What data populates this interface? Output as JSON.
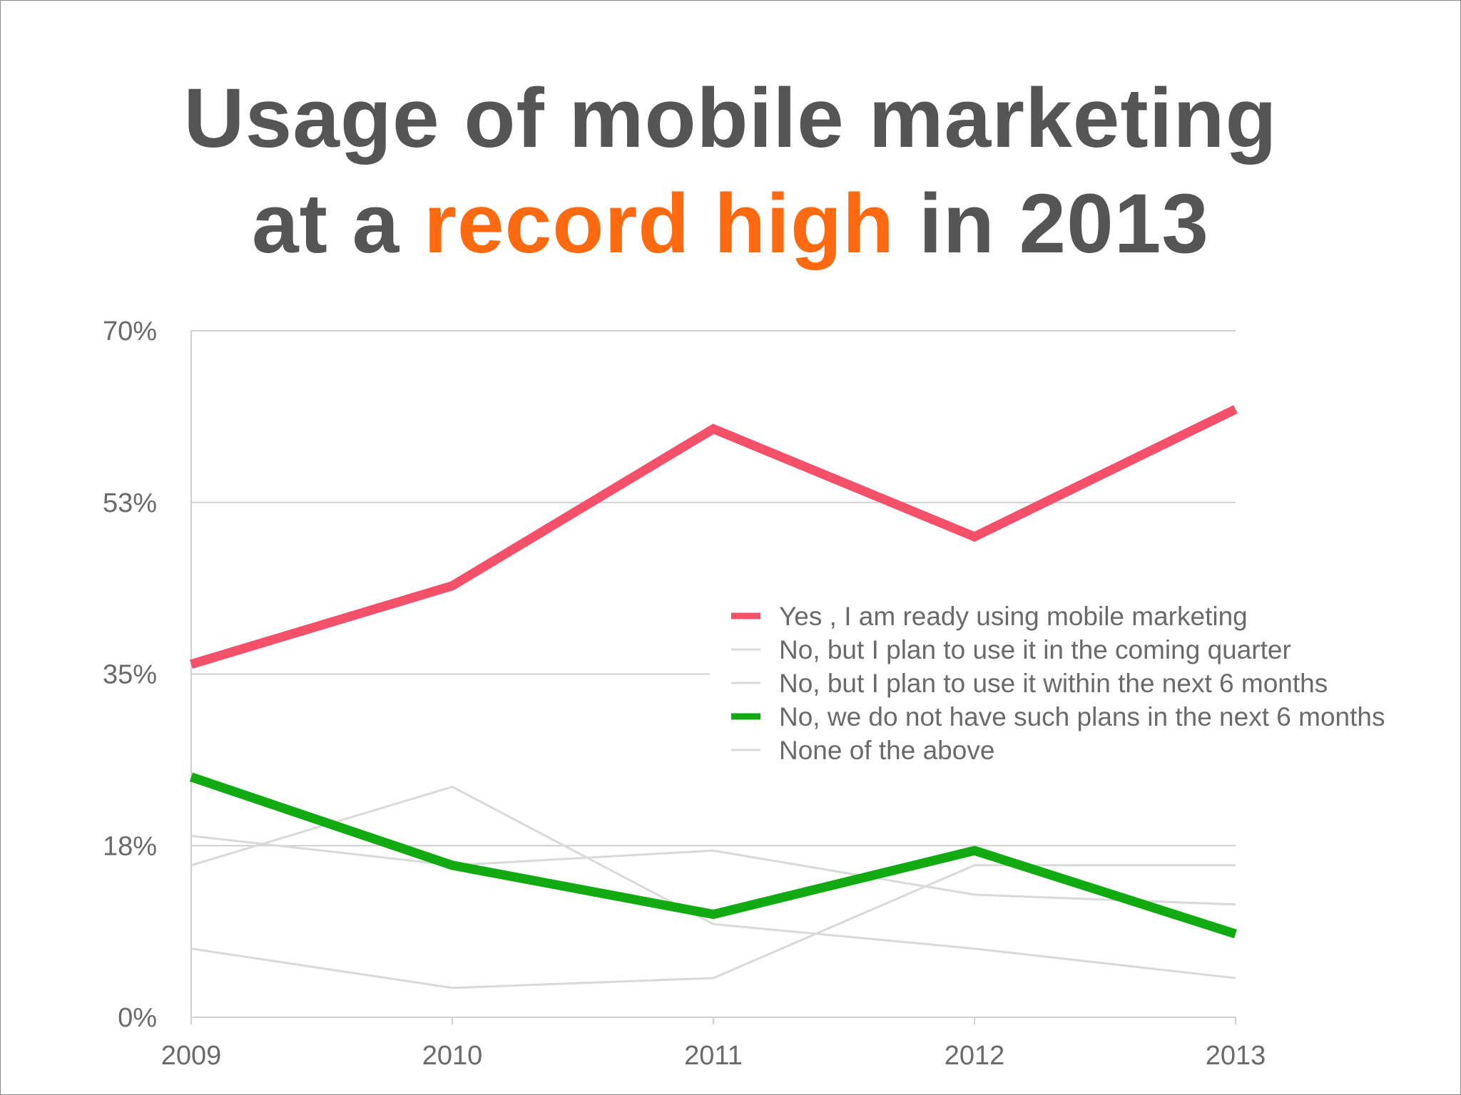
{
  "title": {
    "line1": "Usage of mobile marketing",
    "line2_pre": "at a ",
    "line2_highlight": "record high",
    "line2_post": " in 2013"
  },
  "colors": {
    "highlight": "#ff6a10",
    "title": "#555555",
    "grid": "#cfcfcf"
  },
  "chart_data": {
    "type": "line",
    "x": [
      "2009",
      "2010",
      "2011",
      "2012",
      "2013"
    ],
    "ylim": [
      0,
      70
    ],
    "yticks": [
      "0%",
      "18%",
      "35%",
      "53%",
      "70%"
    ],
    "ytick_values": [
      0,
      17.5,
      35,
      52.5,
      70
    ],
    "grid": true,
    "legend_position": "right",
    "series": [
      {
        "name": "Yes , I am ready using mobile marketing",
        "values": [
          36,
          44,
          60,
          49,
          62
        ],
        "color": "#f5506a"
      },
      {
        "name": "No, but I plan to use it in the coming quarter",
        "values": [
          18.5,
          15.5,
          17,
          12.5,
          11.5
        ],
        "color": "#d9d9d9"
      },
      {
        "name": "No, but I plan to use it within the next 6 months",
        "values": [
          15.5,
          23.5,
          9.5,
          7,
          4
        ],
        "color": "#d9d9d9"
      },
      {
        "name": "No, we do not have such plans in the next 6 months",
        "values": [
          24.5,
          15.5,
          10.5,
          17,
          8.5
        ],
        "color": "#11aa11"
      },
      {
        "name": "None of the above",
        "values": [
          7,
          3,
          4,
          15.5,
          15.5
        ],
        "color": "#d9d9d9"
      }
    ]
  }
}
